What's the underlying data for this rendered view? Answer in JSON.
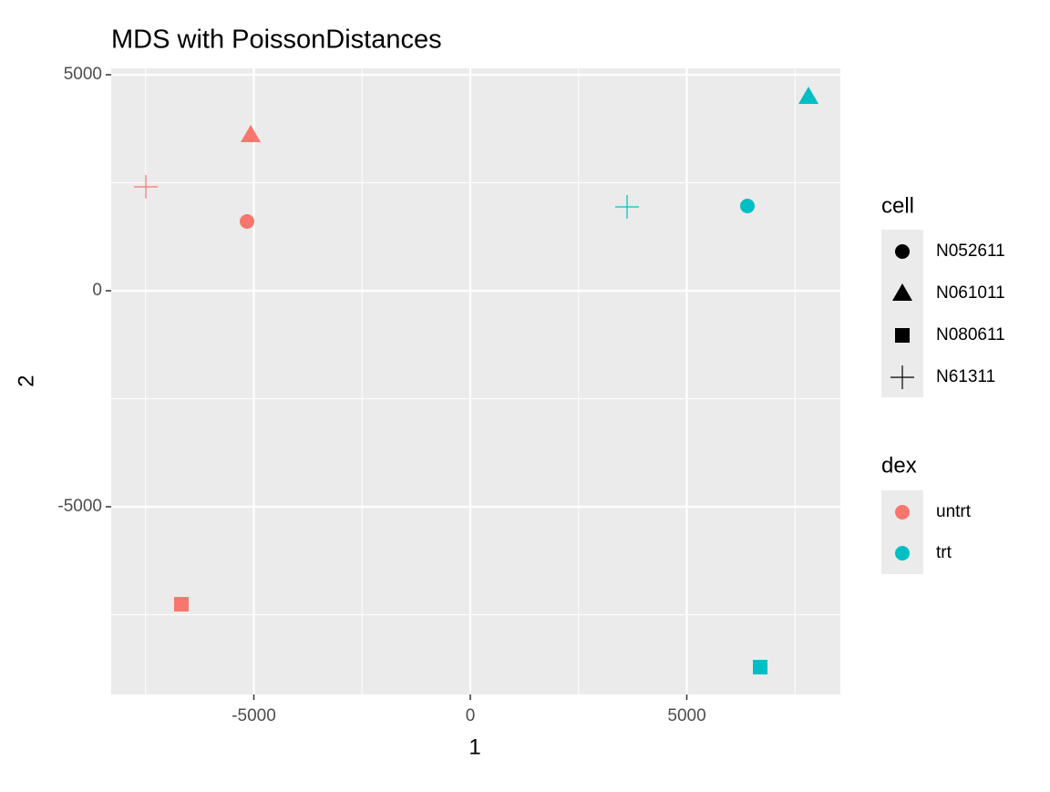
{
  "chart_data": {
    "type": "scatter",
    "title": "MDS with PoissonDistances",
    "x_label": "1",
    "y_label": "2",
    "xlim": [
      -8295,
      8547
    ],
    "ylim": [
      -9346,
      5148
    ],
    "xticks": [
      -5000,
      0,
      5000
    ],
    "yticks": [
      -5000,
      0,
      5000
    ],
    "x_minor_grid": [
      -7500,
      -2500,
      2500,
      7500
    ],
    "y_minor_grid": [
      -7500,
      -2500,
      2500
    ],
    "grid": true,
    "shape_legend": {
      "title": "cell",
      "levels": [
        "N052611",
        "N061011",
        "N080611",
        "N61311"
      ],
      "shapes": [
        "circle",
        "triangle",
        "square",
        "plus"
      ]
    },
    "color_legend_title": "dex",
    "series": [
      {
        "name": "untrt",
        "color": "#f8766d",
        "x": [
          -5158,
          -5074,
          -6674,
          -7495
        ],
        "values": [
          1603,
          3608,
          -7257,
          2405
        ],
        "cell": [
          "N052611",
          "N061011",
          "N080611",
          "N61311"
        ]
      },
      {
        "name": "trt",
        "color": "#00bfc4",
        "x": [
          6400,
          7811,
          6695,
          3621
        ],
        "values": [
          1962,
          4494,
          -8713,
          1941
        ],
        "cell": [
          "N052611",
          "N061011",
          "N080611",
          "N61311"
        ]
      }
    ]
  }
}
